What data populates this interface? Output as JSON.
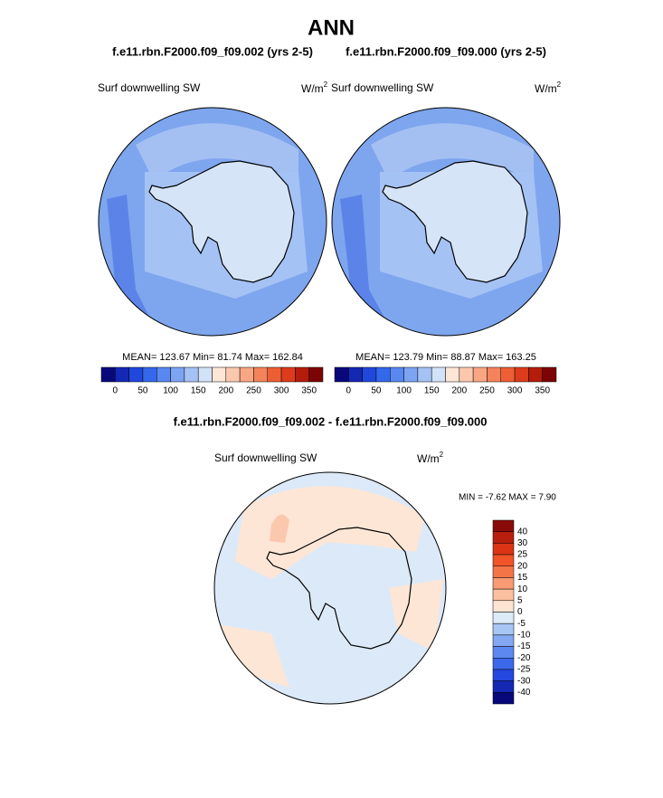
{
  "header": {
    "title": "ANN"
  },
  "panels": [
    {
      "case": "f.e11.rbn.F2000.f09_f09.002 (yrs 2-5)",
      "variable": "Surf downwelling SW",
      "units": {
        "base": "W/m",
        "sup": "2"
      },
      "stats": "MEAN= 123.67  Min=  81.74  Max= 162.84"
    },
    {
      "case": "f.e11.rbn.F2000.f09_f09.000 (yrs 2-5)",
      "variable": "Surf downwelling SW",
      "units": {
        "base": "W/m",
        "sup": "2"
      },
      "stats": "MEAN= 123.79  Min=  88.87  Max= 163.25"
    }
  ],
  "colorbar": {
    "labels": [
      "0",
      "50",
      "100",
      "150",
      "200",
      "250",
      "300",
      "350"
    ],
    "colors": [
      "#08087a",
      "#1428b4",
      "#2048dc",
      "#3468ec",
      "#5888f0",
      "#7ca4f2",
      "#a4c2f4",
      "#d2e2f8",
      "#fde6d6",
      "#fbc8ae",
      "#f8a684",
      "#f4835c",
      "#ee5e34",
      "#dc3c1c",
      "#b41c0c",
      "#7c0404"
    ]
  },
  "difference": {
    "title": "f.e11.rbn.F2000.f09_f09.002 - f.e11.rbn.F2000.f09_f09.000",
    "variable": "Surf downwelling SW",
    "units": {
      "base": "W/m",
      "sup": "2"
    },
    "stats": "MIN =  -7.62 MAX =   7.90",
    "colorbar": {
      "labels": [
        "40",
        "30",
        "25",
        "20",
        "15",
        "10",
        "5",
        "0",
        "-5",
        "-10",
        "-15",
        "-20",
        "-25",
        "-30",
        "-40"
      ],
      "colors": [
        "#8a0a0a",
        "#b81e0e",
        "#dc3414",
        "#f05428",
        "#f47448",
        "#f89a74",
        "#fbc0a0",
        "#fde4d2",
        "#dceaf8",
        "#a8c6f4",
        "#84a8f2",
        "#5c88f0",
        "#3c68ec",
        "#2448e0",
        "#1428b4",
        "#08087a"
      ]
    }
  }
}
